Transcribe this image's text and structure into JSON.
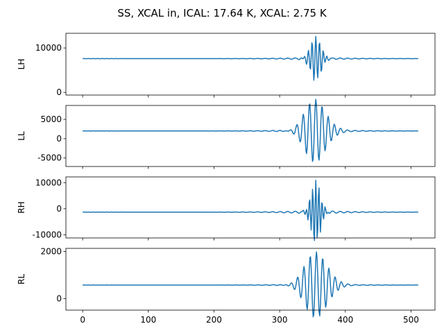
{
  "figure": {
    "title": "SS, XCAL in, ICAL: 17.64 K, XCAL: 2.75 K"
  },
  "chart_data": [
    {
      "type": "line",
      "ylabel": "LH",
      "xlim": [
        -25.5,
        536.5
      ],
      "ylim": [
        -600,
        13300
      ],
      "yticks": [
        0,
        10000
      ],
      "xticks": [
        0,
        100,
        200,
        300,
        400,
        500
      ],
      "show_xticklabels": false,
      "color": "#1f77b4",
      "shape": {
        "n": 512,
        "baseline": 7600,
        "center": 355,
        "amp": 5000,
        "width": 8,
        "freq": 0.42,
        "ripple": 300
      }
    },
    {
      "type": "line",
      "ylabel": "LL",
      "xlim": [
        -25.5,
        536.5
      ],
      "ylim": [
        -7200,
        8600
      ],
      "yticks": [
        -5000,
        0,
        5000
      ],
      "xticks": [
        0,
        100,
        200,
        300,
        400,
        500
      ],
      "show_xticklabels": false,
      "color": "#1f77b4",
      "shape": {
        "n": 512,
        "baseline": 2000,
        "center": 355,
        "amp": 8200,
        "width": 16,
        "freq": 0.25,
        "ripple": 500
      }
    },
    {
      "type": "line",
      "ylabel": "RH",
      "xlim": [
        -25.5,
        536.5
      ],
      "ylim": [
        -11200,
        12200
      ],
      "yticks": [
        -10000,
        0,
        10000
      ],
      "xticks": [
        0,
        100,
        200,
        300,
        400,
        500
      ],
      "show_xticklabels": false,
      "color": "#1f77b4",
      "shape": {
        "n": 512,
        "baseline": -1300,
        "center": 355,
        "amp": 12200,
        "width": 7,
        "freq": 0.5,
        "ripple": 700
      }
    },
    {
      "type": "line",
      "ylabel": "RL",
      "xlim": [
        -25.5,
        536.5
      ],
      "ylim": [
        -480,
        2130
      ],
      "yticks": [
        0,
        2000
      ],
      "xticks": [
        0,
        100,
        200,
        300,
        400,
        500
      ],
      "xticklabels": [
        "0",
        "100",
        "200",
        "300",
        "400",
        "500"
      ],
      "show_xticklabels": true,
      "color": "#1f77b4",
      "shape": {
        "n": 512,
        "baseline": 580,
        "center": 356,
        "amp": 1400,
        "width": 17,
        "freq": 0.25,
        "ripple": 60
      }
    }
  ]
}
